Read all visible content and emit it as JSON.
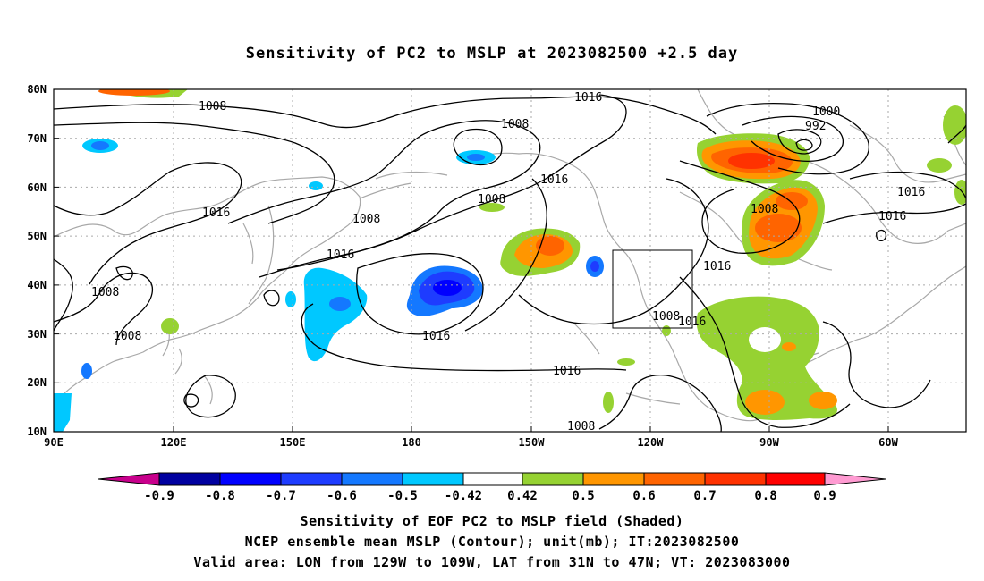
{
  "title": "Sensitivity of PC2 to MSLP at 2023082500 +2.5 day",
  "map": {
    "lon_ticks": [
      "90E",
      "120E",
      "150E",
      "180",
      "150W",
      "120W",
      "90W",
      "60W"
    ],
    "lat_ticks": [
      "80N",
      "70N",
      "60N",
      "50N",
      "40N",
      "30N",
      "20N",
      "10N"
    ],
    "lon_range": [
      "90E",
      "45W"
    ],
    "lat_range": [
      "10N",
      "80N"
    ],
    "grid": "dotted",
    "contour_labels": [
      "1016",
      "1008",
      "1000",
      "992",
      "1008",
      "1016",
      "1016",
      "1008",
      "1016",
      "1016",
      "1008",
      "1016",
      "1008",
      "1008",
      "1016",
      "1008",
      "1016",
      "1016",
      "1016",
      "1008",
      "1008"
    ],
    "valid_box": "129W-109W, 31N-47N"
  },
  "colorbar": {
    "labels": [
      "-0.9",
      "-0.8",
      "-0.7",
      "-0.6",
      "-0.5",
      "-0.42",
      "0.42",
      "0.5",
      "0.6",
      "0.7",
      "0.8",
      "0.9"
    ],
    "colors": [
      "#c8008c",
      "#0000a0",
      "#0000ff",
      "#1e3cff",
      "#1478ff",
      "#00c8ff",
      "#ffffff",
      "#96d232",
      "#ff9600",
      "#ff6400",
      "#ff3200",
      "#ff0000",
      "#ff9bd2"
    ]
  },
  "captions": {
    "line1": "Sensitivity of EOF PC2 to MSLP field (Shaded)",
    "line2": "NCEP ensemble mean MSLP (Contour); unit(mb); IT:2023082500",
    "line3": "Valid area: LON from 129W to 109W, LAT from 31N to 47N; VT: 2023083000"
  }
}
